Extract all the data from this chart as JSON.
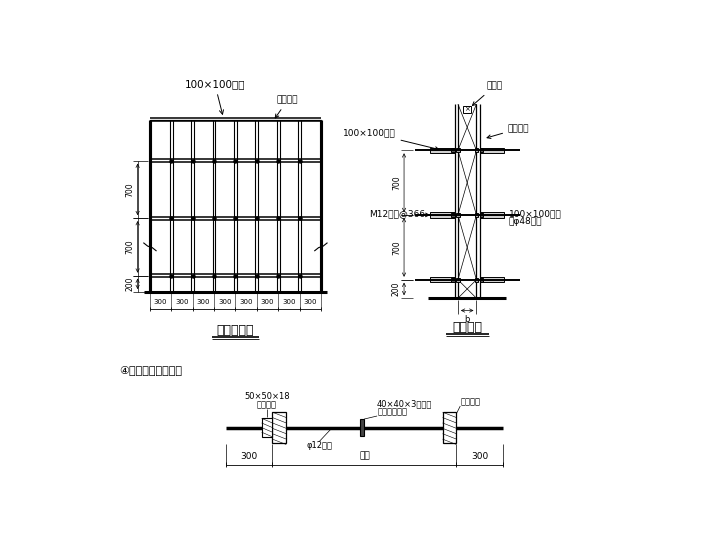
{
  "bg_color": "#ffffff",
  "title1": "墙模立面图",
  "title2": "墙剖面图",
  "label_100x100_1": "100×100木枋",
  "label_koujin": "扣紧扣件",
  "label_100x100_2": "100×100木枋",
  "label_hejiban": "胶合板",
  "label_koujinji": "扣紧扣件",
  "label_m12": "M12螺栓@366",
  "label_100x100_3": "100×100木枋",
  "label_48": "及φ48钢管",
  "label_b": "b",
  "label_wall": "壁厚",
  "label_zhishui": "④止水螺栓示意图：",
  "label_50x50x18": "50×50×18",
  "label_mubanjianpian": "木板垫片",
  "label_40x40x3": "40×40×3止水片",
  "label_shuangmian": "（双面满焊）",
  "label_qiangmu": "墙体模板",
  "label_phi12": "φ12螺栓",
  "dim_700": "700",
  "dim_200": "200",
  "dim_300": "300"
}
